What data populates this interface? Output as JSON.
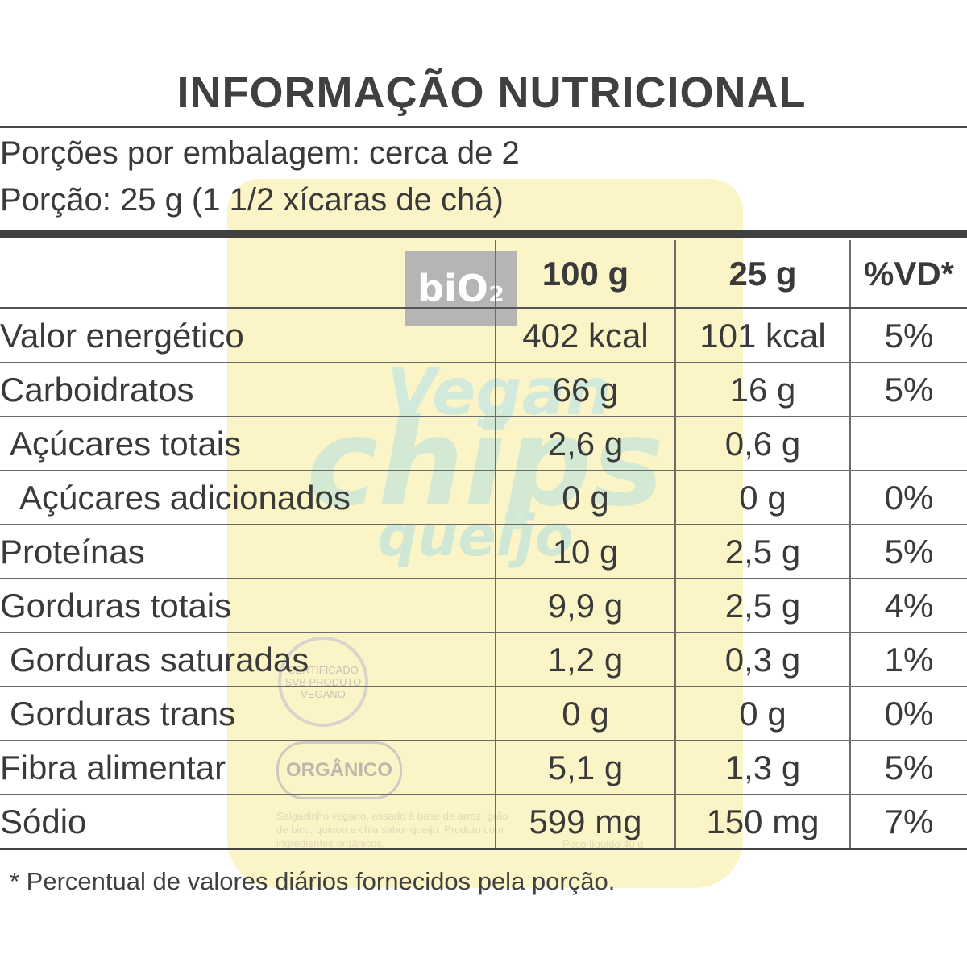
{
  "label": {
    "title": "INFORMAÇÃO NUTRICIONAL",
    "servings_per_package": "Porções por embalagem: cerca de 2",
    "serving_size": "Porção: 25 g (1 1/2 xícaras de chá)",
    "columns": [
      "",
      "100 g",
      "25 g",
      "%VD*"
    ],
    "rows": [
      {
        "name": "Valor energético",
        "per100": "402 kcal",
        "perServing": "101 kcal",
        "dv": "5%",
        "indent": 0
      },
      {
        "name": "Carboidratos",
        "per100": "66 g",
        "perServing": "16 g",
        "dv": "5%",
        "indent": 0
      },
      {
        "name": "Açúcares totais",
        "per100": "2,6 g",
        "perServing": "0,6 g",
        "dv": "",
        "indent": 1
      },
      {
        "name": "Açúcares adicionados",
        "per100": "0 g",
        "perServing": "0 g",
        "dv": "0%",
        "indent": 2
      },
      {
        "name": "Proteínas",
        "per100": "10 g",
        "perServing": "2,5 g",
        "dv": "5%",
        "indent": 0
      },
      {
        "name": "Gorduras totais",
        "per100": "9,9 g",
        "perServing": "2,5 g",
        "dv": "4%",
        "indent": 0
      },
      {
        "name": "Gorduras saturadas",
        "per100": "1,2 g",
        "perServing": "0,3 g",
        "dv": "1%",
        "indent": 1
      },
      {
        "name": "Gorduras trans",
        "per100": "0 g",
        "perServing": "0 g",
        "dv": "0%",
        "indent": 1
      },
      {
        "name": "Fibra alimentar",
        "per100": "5,1 g",
        "perServing": "1,3 g",
        "dv": "5%",
        "indent": 0
      },
      {
        "name": "Sódio",
        "per100": "599 mg",
        "perServing": "150 mg",
        "dv": "7%",
        "indent": 0
      }
    ],
    "footnote": "* Percentual de valores diários fornecidos pela porção."
  },
  "package": {
    "logo": "biO₂",
    "brand_top": "Vegan",
    "brand_main": "chips",
    "brand_flavor": "queijo",
    "seal_text": "CERTIFICADO SVB PRODUTO VEGANO",
    "organic_text": "ORGÂNICO",
    "description": "Salgadinho vegano, assado à base de arroz, grão de bico, quinoa e chia sabor queijo. Produto com ingredientes orgânicos.",
    "weight": "Peso líquido 40 g"
  }
}
